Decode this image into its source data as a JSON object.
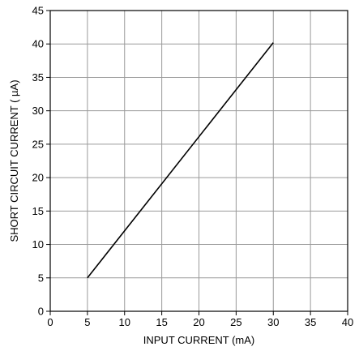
{
  "chart_data": {
    "type": "line",
    "title": "",
    "xlabel": "INPUT CURRENT  (mA)",
    "ylabel": "SHORT CIRCUIT CURRENT  ( µA)",
    "xlim": [
      0,
      40
    ],
    "ylim": [
      0,
      45
    ],
    "x_ticks": [
      0,
      5,
      10,
      15,
      20,
      25,
      30,
      35,
      40
    ],
    "y_ticks": [
      0,
      5,
      10,
      15,
      20,
      25,
      30,
      35,
      40,
      45
    ],
    "x_tick_labels": [
      "0",
      "5",
      "10",
      "15",
      "20",
      "25",
      "30",
      "35",
      "40"
    ],
    "y_tick_labels": [
      "0",
      "5",
      "10",
      "15",
      "20",
      "25",
      "30",
      "35",
      "40",
      "45"
    ],
    "grid": true,
    "legend": "none",
    "series": [
      {
        "x": [
          5,
          30
        ],
        "y": [
          5,
          40.2
        ],
        "color": "#000000"
      }
    ],
    "colors": {
      "grid": "#9a9a9a",
      "frame": "#000000",
      "line": "#000000"
    }
  }
}
